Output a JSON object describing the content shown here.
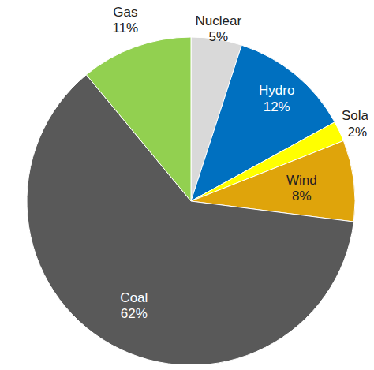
{
  "chart_data": {
    "type": "pie",
    "categories": [
      "Nuclear",
      "Hydro",
      "Solar",
      "Wind",
      "Coal",
      "Gas"
    ],
    "values": [
      5,
      12,
      2,
      8,
      62,
      11
    ],
    "value_labels": [
      "5%",
      "12%",
      "2%",
      "8%",
      "62%",
      "11%"
    ],
    "colors": [
      "#d9d9d9",
      "#0070c0",
      "#ffff00",
      "#dfa40b",
      "#595959",
      "#92d050"
    ],
    "data_labels": true
  }
}
